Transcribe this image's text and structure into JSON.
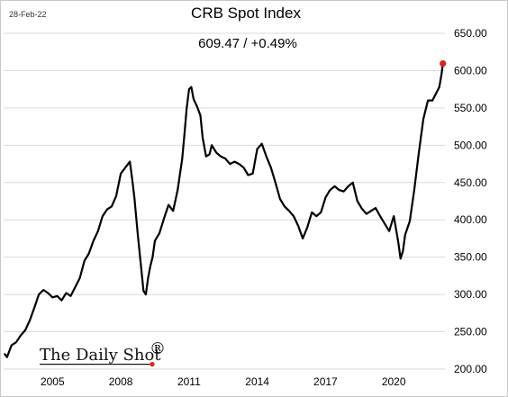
{
  "date_label": "28-Feb-22",
  "brand": {
    "name": "The Daily Shot",
    "mark": "®",
    "mark_color": "#e0201b"
  },
  "chart_data": {
    "type": "line",
    "title": "CRB Spot Index",
    "subtitle": "609.47  /  +0.49%",
    "xlabel": "",
    "ylabel": "",
    "xlim": [
      2002.85,
      2022.25
    ],
    "ylim": [
      200,
      650
    ],
    "x_ticks": [
      2005,
      2008,
      2011,
      2014,
      2017,
      2020
    ],
    "x_tick_labels": [
      "2005",
      "2008",
      "2011",
      "2014",
      "2017",
      "2020"
    ],
    "y_ticks": [
      200,
      250,
      300,
      350,
      400,
      450,
      500,
      550,
      600,
      650
    ],
    "y_tick_labels": [
      "200.00",
      "250.00",
      "300.00",
      "350.00",
      "400.00",
      "450.00",
      "500.00",
      "550.00",
      "600.00",
      "650.00"
    ],
    "y_axis_side": "right",
    "grid": "horizontal",
    "line_color": "#000000",
    "marker_color": "#e0201b",
    "last_value": 609.47,
    "series": [
      {
        "x": [
          2002.9,
          2003.0,
          2003.2,
          2003.4,
          2003.6,
          2003.8,
          2004.0,
          2004.2,
          2004.4,
          2004.6,
          2004.8,
          2005.0,
          2005.2,
          2005.4,
          2005.6,
          2005.8,
          2006.0,
          2006.2,
          2006.4,
          2006.6,
          2006.8,
          2007.0,
          2007.2,
          2007.4,
          2007.6,
          2007.8,
          2008.0,
          2008.2,
          2008.4,
          2008.5,
          2008.6,
          2008.75,
          2008.9,
          2009.0,
          2009.1,
          2009.2,
          2009.3,
          2009.4,
          2009.5,
          2009.7,
          2009.9,
          2010.1,
          2010.3,
          2010.5,
          2010.7,
          2010.8,
          2010.9,
          2011.0,
          2011.1,
          2011.2,
          2011.35,
          2011.5,
          2011.6,
          2011.75,
          2011.9,
          2012.0,
          2012.2,
          2012.4,
          2012.6,
          2012.8,
          2013.0,
          2013.2,
          2013.4,
          2013.6,
          2013.8,
          2014.0,
          2014.2,
          2014.4,
          2014.6,
          2014.8,
          2015.0,
          2015.2,
          2015.4,
          2015.6,
          2015.8,
          2016.0,
          2016.2,
          2016.4,
          2016.6,
          2016.8,
          2017.0,
          2017.2,
          2017.4,
          2017.6,
          2017.8,
          2018.0,
          2018.2,
          2018.4,
          2018.6,
          2018.8,
          2019.0,
          2019.2,
          2019.4,
          2019.6,
          2019.8,
          2020.0,
          2020.2,
          2020.3,
          2020.4,
          2020.5,
          2020.7,
          2020.9,
          2021.1,
          2021.3,
          2021.5,
          2021.7,
          2021.9,
          2022.0,
          2022.1,
          2022.16
        ],
        "y": [
          220,
          216,
          232,
          236,
          245,
          252,
          265,
          282,
          300,
          306,
          302,
          296,
          298,
          292,
          302,
          298,
          310,
          322,
          345,
          355,
          372,
          385,
          405,
          414,
          418,
          432,
          462,
          470,
          478,
          455,
          430,
          380,
          335,
          305,
          300,
          322,
          338,
          350,
          372,
          382,
          402,
          420,
          412,
          440,
          482,
          515,
          550,
          575,
          578,
          562,
          552,
          540,
          510,
          485,
          488,
          500,
          490,
          485,
          482,
          475,
          478,
          475,
          470,
          460,
          462,
          495,
          502,
          485,
          470,
          450,
          428,
          418,
          412,
          405,
          392,
          375,
          390,
          410,
          405,
          410,
          430,
          440,
          445,
          440,
          438,
          445,
          450,
          425,
          415,
          408,
          412,
          416,
          405,
          395,
          385,
          405,
          370,
          348,
          358,
          380,
          398,
          440,
          490,
          535,
          560,
          560,
          572,
          578,
          595,
          609.47
        ]
      }
    ]
  }
}
